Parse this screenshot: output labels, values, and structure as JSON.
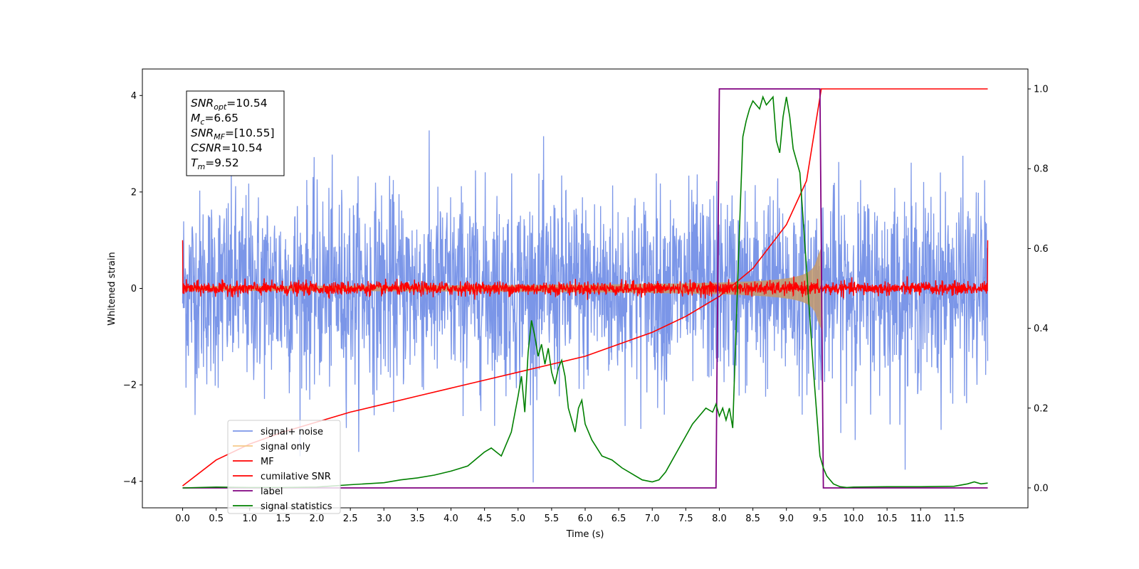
{
  "chart_data": {
    "type": "line",
    "xlabel": "Time (s)",
    "ylabel": "Whitened strain",
    "xlim": [
      -0.6,
      12.6
    ],
    "ylim": [
      -4.55,
      4.55
    ],
    "ylim_right": [
      -0.05,
      1.05
    ],
    "xticks": [
      "0.0",
      "0.5",
      "1.0",
      "1.5",
      "2.0",
      "2.5",
      "3.0",
      "3.5",
      "4.0",
      "4.5",
      "5.0",
      "5.5",
      "6.0",
      "6.5",
      "7.0",
      "7.5",
      "8.0",
      "8.5",
      "9.0",
      "9.5",
      "10.0",
      "10.5",
      "11.0",
      "11.5"
    ],
    "xtick_values": [
      0.0,
      0.5,
      1.0,
      1.5,
      2.0,
      2.5,
      3.0,
      3.5,
      4.0,
      4.5,
      5.0,
      5.5,
      6.0,
      6.5,
      7.0,
      7.5,
      8.0,
      8.5,
      9.0,
      9.5,
      10.0,
      10.5,
      11.0,
      11.5
    ],
    "yticks_left": [
      "−4",
      "−2",
      "0",
      "2",
      "4"
    ],
    "ytick_left_values": [
      -4,
      -2,
      0,
      2,
      4
    ],
    "yticks_right": [
      "0.0",
      "0.2",
      "0.4",
      "0.6",
      "0.8",
      "1.0"
    ],
    "ytick_right_values": [
      0.0,
      0.2,
      0.4,
      0.6,
      0.8,
      1.0
    ],
    "grid": false,
    "legend_position": "lower-left",
    "annotation_box": {
      "lines": [
        {
          "main": "SNR",
          "sub": "opt",
          "rest": "=10.54"
        },
        {
          "main": "M",
          "sub": "c",
          "rest": "=6.65"
        },
        {
          "main": "SNR",
          "sub": "MF",
          "rest": "=[10.55]"
        },
        {
          "main": "CSNR",
          "sub": "",
          "rest": "=10.54"
        },
        {
          "main": "T",
          "sub": "m",
          "rest": "=9.52"
        }
      ]
    },
    "series": [
      {
        "name": "signal+ noise",
        "color": "#7b96e8",
        "axis": "left",
        "kind": "noise",
        "x_range": [
          0,
          12
        ],
        "amplitude_std": 1.0,
        "peak_max": 4.1,
        "peak_min": -4.1
      },
      {
        "name": "signal only",
        "color": "#f5c98a",
        "axis": "left",
        "kind": "chirp_envelope",
        "x_range": [
          0,
          9.52
        ],
        "max_amplitude": 0.85
      },
      {
        "name": "MF",
        "color": "#ff0000",
        "axis": "left",
        "kind": "noise",
        "x_range": [
          0,
          12
        ],
        "amplitude_std": 0.07,
        "edge_value": 1.0
      },
      {
        "name": "cumilative SNR",
        "color": "#ff0000",
        "axis": "right",
        "kind": "curve",
        "x": [
          0.0,
          0.5,
          1.0,
          1.5,
          2.0,
          2.5,
          3.0,
          3.5,
          4.0,
          4.5,
          5.0,
          5.5,
          6.0,
          6.5,
          7.0,
          7.5,
          8.0,
          8.5,
          9.0,
          9.3,
          9.52,
          12.0
        ],
        "y": [
          0.005,
          0.07,
          0.11,
          0.14,
          0.165,
          0.19,
          0.21,
          0.23,
          0.25,
          0.27,
          0.29,
          0.31,
          0.33,
          0.36,
          0.39,
          0.43,
          0.48,
          0.55,
          0.66,
          0.77,
          1.0,
          1.0
        ]
      },
      {
        "name": "label",
        "color": "#800080",
        "axis": "right",
        "kind": "step",
        "x": [
          0.0,
          7.95,
          8.0,
          9.5,
          9.55,
          12.0
        ],
        "y": [
          0.0,
          0.0,
          1.0,
          1.0,
          0.0,
          0.0
        ]
      },
      {
        "name": "signal statistics",
        "color": "#008000",
        "axis": "right",
        "kind": "curve",
        "x": [
          0.0,
          0.5,
          1.0,
          1.5,
          2.0,
          2.5,
          3.0,
          3.25,
          3.5,
          3.75,
          4.0,
          4.25,
          4.5,
          4.6,
          4.75,
          4.9,
          5.0,
          5.05,
          5.1,
          5.15,
          5.2,
          5.25,
          5.3,
          5.35,
          5.4,
          5.45,
          5.5,
          5.55,
          5.6,
          5.65,
          5.7,
          5.75,
          5.8,
          5.85,
          5.9,
          5.95,
          6.0,
          6.1,
          6.25,
          6.4,
          6.55,
          6.7,
          6.85,
          7.0,
          7.1,
          7.2,
          7.3,
          7.4,
          7.5,
          7.6,
          7.7,
          7.8,
          7.9,
          7.95,
          8.0,
          8.05,
          8.1,
          8.15,
          8.2,
          8.25,
          8.3,
          8.35,
          8.4,
          8.45,
          8.5,
          8.55,
          8.6,
          8.65,
          8.7,
          8.75,
          8.8,
          8.85,
          8.9,
          8.95,
          9.0,
          9.05,
          9.1,
          9.15,
          9.2,
          9.3,
          9.4,
          9.5,
          9.55,
          9.6,
          9.7,
          9.8,
          9.9,
          10.0,
          10.5,
          11.0,
          11.5,
          11.7,
          11.8,
          11.9,
          12.0
        ],
        "y": [
          0.0,
          0.002,
          0.001,
          0.001,
          0.002,
          0.008,
          0.013,
          0.02,
          0.025,
          0.032,
          0.042,
          0.055,
          0.09,
          0.1,
          0.08,
          0.14,
          0.23,
          0.28,
          0.19,
          0.34,
          0.42,
          0.38,
          0.33,
          0.36,
          0.31,
          0.35,
          0.29,
          0.26,
          0.3,
          0.32,
          0.28,
          0.2,
          0.17,
          0.14,
          0.2,
          0.22,
          0.16,
          0.12,
          0.08,
          0.07,
          0.05,
          0.035,
          0.02,
          0.015,
          0.02,
          0.04,
          0.07,
          0.1,
          0.13,
          0.16,
          0.18,
          0.2,
          0.19,
          0.21,
          0.18,
          0.2,
          0.17,
          0.2,
          0.15,
          0.4,
          0.65,
          0.88,
          0.92,
          0.95,
          0.97,
          0.96,
          0.95,
          0.98,
          0.96,
          0.97,
          0.98,
          0.87,
          0.84,
          0.93,
          0.98,
          0.93,
          0.85,
          0.82,
          0.79,
          0.55,
          0.3,
          0.08,
          0.05,
          0.03,
          0.01,
          0.003,
          0.001,
          0.002,
          0.003,
          0.003,
          0.004,
          0.01,
          0.015,
          0.01,
          0.012
        ]
      }
    ]
  }
}
